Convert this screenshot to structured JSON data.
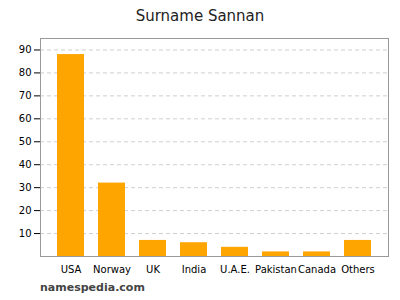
{
  "chart_data": {
    "type": "bar",
    "title": "Surname Sannan",
    "categories": [
      "USA",
      "Norway",
      "UK",
      "India",
      "U.A.E.",
      "Pakistan",
      "Canada",
      "Others"
    ],
    "values": [
      88,
      32,
      7,
      6,
      4,
      2,
      2,
      7
    ],
    "color": "#FFA500",
    "ylim": [
      0,
      95
    ],
    "yticks": [
      10,
      20,
      30,
      40,
      50,
      60,
      70,
      80,
      90
    ],
    "grid": true,
    "annotations": [
      "namespedia.com"
    ]
  }
}
